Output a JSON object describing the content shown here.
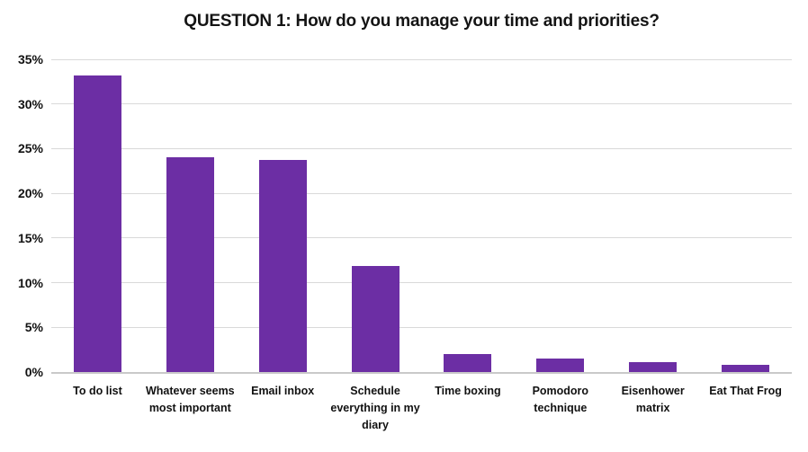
{
  "chart_data": {
    "type": "bar",
    "title": "QUESTION 1: How do you manage your time and priorities?",
    "categories": [
      "To do list",
      "Whatever seems most important",
      "Email inbox",
      "Schedule everything in my diary",
      "Time boxing",
      "Pomodoro technique",
      "Eisenhower matrix",
      "Eat That Frog"
    ],
    "values": [
      33.2,
      24.0,
      23.7,
      11.9,
      2.0,
      1.5,
      1.1,
      0.8
    ],
    "xlabel": "",
    "ylabel": "",
    "ylim": [
      0,
      35
    ],
    "yticks": [
      0,
      5,
      10,
      15,
      20,
      25,
      30,
      35
    ],
    "ytick_labels": [
      "0%",
      "5%",
      "10%",
      "15%",
      "20%",
      "25%",
      "30%",
      "35%"
    ],
    "bar_color": "#6C2EA4",
    "gridline_color": "#d9d9d9",
    "axis_line_color": "#c9c9c9",
    "grid": true,
    "legend": false
  }
}
